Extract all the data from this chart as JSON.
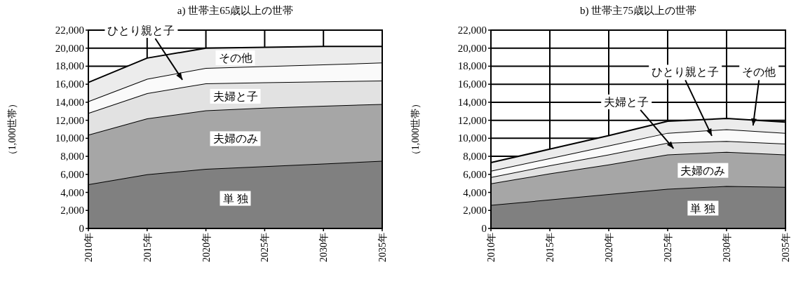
{
  "chart_data": [
    {
      "type": "area",
      "stacked": true,
      "title": "a) 世帯主65歳以上の世帯",
      "ylabel": "（1,000世帯）",
      "categories": [
        "2010年",
        "2015年",
        "2020年",
        "2025年",
        "2030年",
        "2035年"
      ],
      "ylim": [
        0,
        22000
      ],
      "yticks": [
        {
          "value": 0,
          "label": "0"
        },
        {
          "value": 2000,
          "label": "2,000"
        },
        {
          "value": 4000,
          "label": "4,000"
        },
        {
          "value": 6000,
          "label": "6,000"
        },
        {
          "value": 8000,
          "label": "8,000"
        },
        {
          "value": 10000,
          "label": "10,000"
        },
        {
          "value": 12000,
          "label": "12,000"
        },
        {
          "value": 14000,
          "label": "14,000"
        },
        {
          "value": 16000,
          "label": "16,000"
        },
        {
          "value": 18000,
          "label": "18,000"
        },
        {
          "value": 20000,
          "label": "20,000"
        },
        {
          "value": 22000,
          "label": "22,000"
        }
      ],
      "grid": true,
      "series": [
        {
          "name": "単 独",
          "color": "#808080",
          "values": [
            4900,
            6000,
            6600,
            6900,
            7200,
            7500
          ]
        },
        {
          "name": "夫婦のみ",
          "color": "#a6a6a6",
          "values": [
            5500,
            6200,
            6500,
            6500,
            6400,
            6300
          ]
        },
        {
          "name": "夫婦と子",
          "color": "#e2e2e2",
          "values": [
            2400,
            2800,
            3000,
            2800,
            2700,
            2600
          ]
        },
        {
          "name": "ひとり親と子",
          "color": "#fafafa",
          "values": [
            1300,
            1600,
            1700,
            1800,
            1900,
            2000
          ]
        },
        {
          "name": "その他",
          "color": "#ececec",
          "values": [
            2100,
            2300,
            2200,
            2100,
            2000,
            1800
          ]
        }
      ]
    },
    {
      "type": "area",
      "stacked": true,
      "title": "b) 世帯主75歳以上の世帯",
      "ylabel": "（1,000世帯）",
      "categories": [
        "2010年",
        "2015年",
        "2020年",
        "2025年",
        "2030年",
        "2035年"
      ],
      "ylim": [
        0,
        22000
      ],
      "yticks": [
        {
          "value": 0,
          "label": "0"
        },
        {
          "value": 2000,
          "label": "2,000"
        },
        {
          "value": 4000,
          "label": "4,000"
        },
        {
          "value": 6000,
          "label": "6,000"
        },
        {
          "value": 8000,
          "label": "8,000"
        },
        {
          "value": 10000,
          "label": "10,000"
        },
        {
          "value": 12000,
          "label": "12,000"
        },
        {
          "value": 14000,
          "label": "14,000"
        },
        {
          "value": 16000,
          "label": "16,000"
        },
        {
          "value": 18000,
          "label": "18,000"
        },
        {
          "value": 20000,
          "label": "20,000"
        },
        {
          "value": 22000,
          "label": "22,000"
        }
      ],
      "grid": true,
      "series": [
        {
          "name": "単 独",
          "color": "#808080",
          "values": [
            2600,
            3200,
            3800,
            4400,
            4700,
            4600
          ]
        },
        {
          "name": "夫婦のみ",
          "color": "#a6a6a6",
          "values": [
            2400,
            2900,
            3300,
            3800,
            3800,
            3600
          ]
        },
        {
          "name": "夫婦と子",
          "color": "#e2e2e2",
          "values": [
            700,
            900,
            1100,
            1300,
            1200,
            1200
          ]
        },
        {
          "name": "ひとり親と子",
          "color": "#fafafa",
          "values": [
            700,
            800,
            1000,
            1100,
            1300,
            1200
          ]
        },
        {
          "name": "その他",
          "color": "#ececec",
          "values": [
            900,
            1000,
            1100,
            1300,
            1200,
            1200
          ]
        }
      ]
    }
  ]
}
